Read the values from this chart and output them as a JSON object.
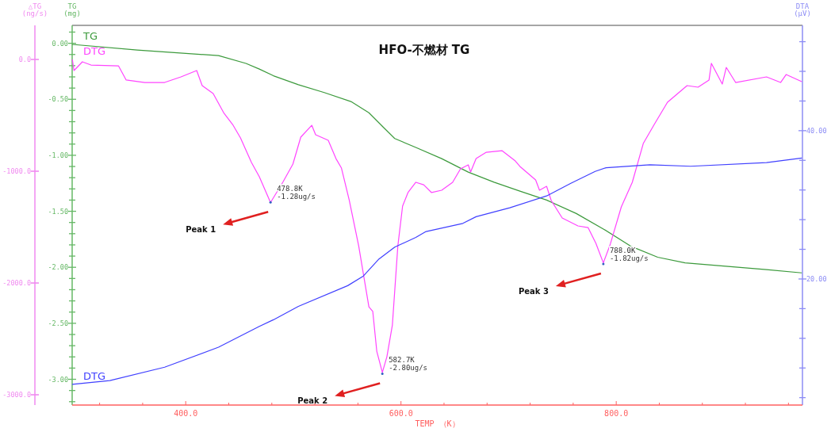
{
  "chart_data": {
    "type": "line",
    "title": "HFO-不燃材  TG",
    "xlabel": "TEMP （K）",
    "ylabel": "TG\n(mg)",
    "y2label": "DTA\n(μV)",
    "y3label": "△TG\n(ng/s)",
    "xlim": [
      294.5,
      973
    ],
    "ylim": [
      -3.23,
      0.16
    ],
    "y2lim": [
      3.0,
      54.2
    ],
    "y3lim": [
      -3092,
      305
    ],
    "xticks": [
      {
        "value": 320,
        "label": null
      },
      {
        "value": 360,
        "label": null
      },
      {
        "value": 400,
        "label": "400.0"
      },
      {
        "value": 440,
        "label": null
      },
      {
        "value": 480,
        "label": null
      },
      {
        "value": 520,
        "label": null
      },
      {
        "value": 560,
        "label": null
      },
      {
        "value": 600,
        "label": "600.0"
      },
      {
        "value": 640,
        "label": null
      },
      {
        "value": 680,
        "label": null
      },
      {
        "value": 720,
        "label": null
      },
      {
        "value": 760,
        "label": null
      },
      {
        "value": 800,
        "label": "800.0"
      },
      {
        "value": 840,
        "label": null
      },
      {
        "value": 880,
        "label": null
      },
      {
        "value": 920,
        "label": null
      },
      {
        "value": 960,
        "label": null
      }
    ],
    "yticks": [
      {
        "value": 0.1,
        "label": null
      },
      {
        "value": 0,
        "label": "0.00"
      },
      {
        "value": -0.1,
        "label": null
      },
      {
        "value": -0.2,
        "label": null
      },
      {
        "value": -0.3,
        "label": null
      },
      {
        "value": -0.4,
        "label": null
      },
      {
        "value": -0.5,
        "label": "-0.50"
      },
      {
        "value": -0.6,
        "label": null
      },
      {
        "value": -0.7,
        "label": null
      },
      {
        "value": -0.8,
        "label": null
      },
      {
        "value": -0.9,
        "label": null
      },
      {
        "value": -1.0,
        "label": "-1.00"
      },
      {
        "value": -1.1,
        "label": null
      },
      {
        "value": -1.2,
        "label": null
      },
      {
        "value": -1.3,
        "label": null
      },
      {
        "value": -1.4,
        "label": null
      },
      {
        "value": -1.5,
        "label": "-1.50"
      },
      {
        "value": -1.6,
        "label": null
      },
      {
        "value": -1.7,
        "label": null
      },
      {
        "value": -1.8,
        "label": null
      },
      {
        "value": -1.9,
        "label": null
      },
      {
        "value": -2.0,
        "label": "-2.00"
      },
      {
        "value": -2.1,
        "label": null
      },
      {
        "value": -2.2,
        "label": null
      },
      {
        "value": -2.3,
        "label": null
      },
      {
        "value": -2.4,
        "label": null
      },
      {
        "value": -2.5,
        "label": "-2.50"
      },
      {
        "value": -2.6,
        "label": null
      },
      {
        "value": -2.7,
        "label": null
      },
      {
        "value": -2.8,
        "label": null
      },
      {
        "value": -2.9,
        "label": null
      },
      {
        "value": -3.0,
        "label": "-3.00"
      },
      {
        "value": -3.1,
        "label": null
      },
      {
        "value": -3.2,
        "label": null
      }
    ],
    "y2ticks": [
      {
        "value": 52,
        "label": null
      },
      {
        "value": 48,
        "label": null
      },
      {
        "value": 44,
        "label": null
      },
      {
        "value": 40,
        "label": "40.00"
      },
      {
        "value": 36,
        "label": null
      },
      {
        "value": 32,
        "label": null
      },
      {
        "value": 28,
        "label": null
      },
      {
        "value": 24,
        "label": null
      },
      {
        "value": 20,
        "label": "20.00"
      },
      {
        "value": 16,
        "label": null
      },
      {
        "value": 12,
        "label": null
      },
      {
        "value": 8,
        "label": null
      },
      {
        "value": 4,
        "label": null
      }
    ],
    "y3ticks": [
      {
        "value": 0,
        "label": "0.0"
      },
      {
        "value": -1000,
        "label": "-1000.0"
      },
      {
        "value": -2000,
        "label": "-2000.0"
      },
      {
        "value": -3000,
        "label": "-3000.0"
      }
    ],
    "series": [
      {
        "name": "TG",
        "color": "#3c9a3c",
        "axis": "y",
        "x": [
          294.5,
          354.9,
          430.5,
          456,
          468.4,
          481.5,
          504.7,
          528.7,
          553.5,
          570.2,
          584.7,
          594.2,
          613.8,
          637.8,
          662.5,
          686.5,
          710.5,
          735.3,
          762.9,
          788.4,
          813.1,
          838.5,
          864,
          901.8,
          939.6,
          972.4
        ],
        "values": [
          -0.01,
          -0.06,
          -0.11,
          -0.18,
          -0.23,
          -0.29,
          -0.37,
          -0.44,
          -0.52,
          -0.62,
          -0.76,
          -0.85,
          -0.93,
          -1.03,
          -1.15,
          -1.24,
          -1.32,
          -1.4,
          -1.52,
          -1.66,
          -1.81,
          -1.91,
          -1.96,
          -1.99,
          -2.02,
          -2.05
        ]
      },
      {
        "name": "DTG",
        "color": "#ff44ff",
        "axis": "y3",
        "x": [
          294.7,
          296.2,
          304,
          312,
          337.5,
          344.7,
          362,
          380.4,
          395.6,
          410.2,
          415.3,
          425.5,
          435.6,
          443.6,
          450.9,
          461.1,
          468.4,
          478.8,
          490.2,
          499.6,
          506.9,
          517.1,
          520.7,
          532.4,
          539.6,
          544.7,
          552,
          560.7,
          570.2,
          573.8,
          577.5,
          582.7,
          586.9,
          592,
          597.1,
          601.5,
          606.5,
          613.8,
          621.1,
          628.4,
          637.8,
          648,
          655.3,
          662.5,
          664.7,
          669.8,
          679.3,
          693.8,
          706.2,
          710.5,
          725.1,
          728.7,
          735.3,
          739.6,
          749.8,
          764.4,
          773.8,
          781.1,
          788.0,
          794.5,
          804.7,
          814.9,
          825.1,
          835.3,
          847.6,
          865.8,
          876,
          886.2,
          888.4,
          898.5,
          902.2,
          910.9,
          939.6,
          952.7,
          957.8,
          972.4
        ],
        "values": [
          0,
          -99,
          -21,
          -50,
          -57,
          -184,
          -206,
          -206,
          -156,
          -99,
          -234,
          -305,
          -482,
          -582,
          -702,
          -922,
          -1050,
          -1280,
          -1099,
          -936,
          -695,
          -589,
          -674,
          -723,
          -887,
          -972,
          -1262,
          -1667,
          -2213,
          -2255,
          -2610,
          -2800,
          -2660,
          -2376,
          -1667,
          -1312,
          -1191,
          -1099,
          -1121,
          -1191,
          -1170,
          -1099,
          -979,
          -943,
          -1007,
          -887,
          -830,
          -816,
          -908,
          -957,
          -1078,
          -1170,
          -1135,
          -1262,
          -1418,
          -1489,
          -1504,
          -1645,
          -1820,
          -1652,
          -1319,
          -1099,
          -752,
          -582,
          -383,
          -234,
          -248,
          -184,
          -35,
          -220,
          -71,
          -206,
          -156,
          -206,
          -135,
          -199
        ]
      },
      {
        "name": "DTG",
        "color": "#4040ff",
        "axis": "y2",
        "x": [
          294.5,
          329.5,
          380.4,
          430.5,
          468.4,
          481.5,
          504.7,
          550.5,
          565.1,
          579.6,
          594.2,
          613.8,
          623.3,
          657.5,
          669.8,
          701.1,
          735.3,
          757.8,
          780.4,
          790.5,
          831.3,
          869.1,
          939.6,
          972.4
        ],
        "values": [
          5.8,
          6.3,
          8.1,
          10.8,
          13.6,
          14.5,
          16.3,
          19.1,
          20.4,
          22.7,
          24.3,
          25.6,
          26.4,
          27.5,
          28.4,
          29.6,
          31.2,
          32.9,
          34.5,
          35.0,
          35.4,
          35.2,
          35.7,
          36.3
        ]
      }
    ],
    "annotations": [
      {
        "text": "478.8K\n-1.28ug/s",
        "x": 478.8,
        "y": -1.42
      },
      {
        "text": "582.7K\n-2.80ug/s",
        "x": 582.7,
        "y": -2.95
      },
      {
        "text": "788.0K\n-1.82ug/s",
        "x": 788.0,
        "y": -1.97
      },
      "Peak 1",
      "Peak 2",
      "Peak 3"
    ]
  }
}
